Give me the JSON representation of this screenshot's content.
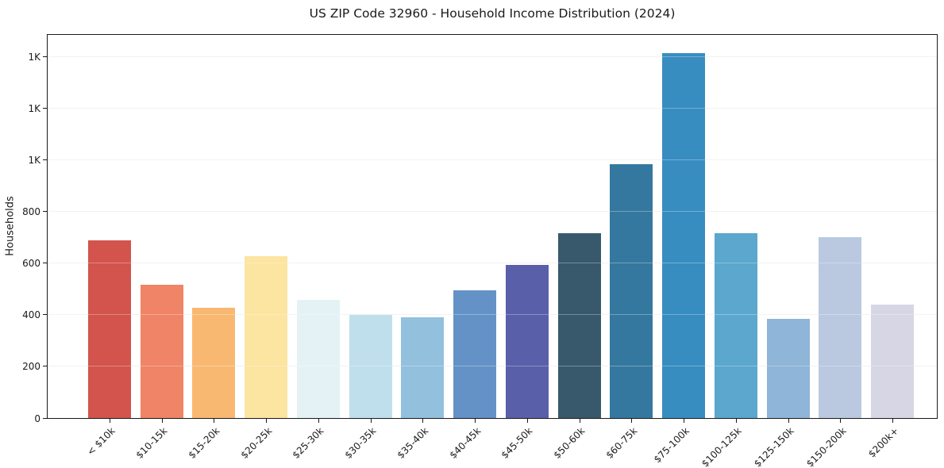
{
  "figure": {
    "title": "US ZIP Code 32960 - Household Income Distribution (2024)",
    "background_color": "#ffffff",
    "spine_color": "#1a1a1a",
    "gridline_color": "#ececec"
  },
  "chart_data": {
    "type": "bar",
    "title": "US ZIP Code 32960 - Household Income Distribution (2024)",
    "xlabel": "",
    "ylabel": "Households",
    "categories": [
      "< $10k",
      "$10-15k",
      "$15-20k",
      "$20-25k",
      "$25-30k",
      "$30-35k",
      "$35-40k",
      "$40-45k",
      "$45-50k",
      "$50-60k",
      "$60-75k",
      "$75-100k",
      "$100-125k",
      "$125-150k",
      "$150-200k",
      "$200k+"
    ],
    "values": [
      690,
      517,
      428,
      627,
      457,
      400,
      390,
      494,
      593,
      716,
      984,
      1414,
      716,
      383,
      701,
      440
    ],
    "bar_colors": [
      "#d3544d",
      "#ef8466",
      "#f9b872",
      "#fce4a1",
      "#e4f2f5",
      "#bfdfec",
      "#92c0dd",
      "#6492c6",
      "#5a5fa9",
      "#38596c",
      "#35789f",
      "#388dc0",
      "#5ba7ce",
      "#8fb5d8",
      "#bac9e0",
      "#d7d6e4"
    ],
    "ylim": [
      0,
      1485
    ],
    "y_ticks": [
      {
        "value": 0,
        "label": "0"
      },
      {
        "value": 200,
        "label": "200"
      },
      {
        "value": 400,
        "label": "400"
      },
      {
        "value": 600,
        "label": "600"
      },
      {
        "value": 800,
        "label": "800"
      },
      {
        "value": 1000,
        "label": "1K"
      },
      {
        "value": 1200,
        "label": "1K"
      },
      {
        "value": 1400,
        "label": "1K"
      }
    ],
    "grid": "horizontal",
    "legend": "none",
    "x_tick_rotation": 45
  }
}
